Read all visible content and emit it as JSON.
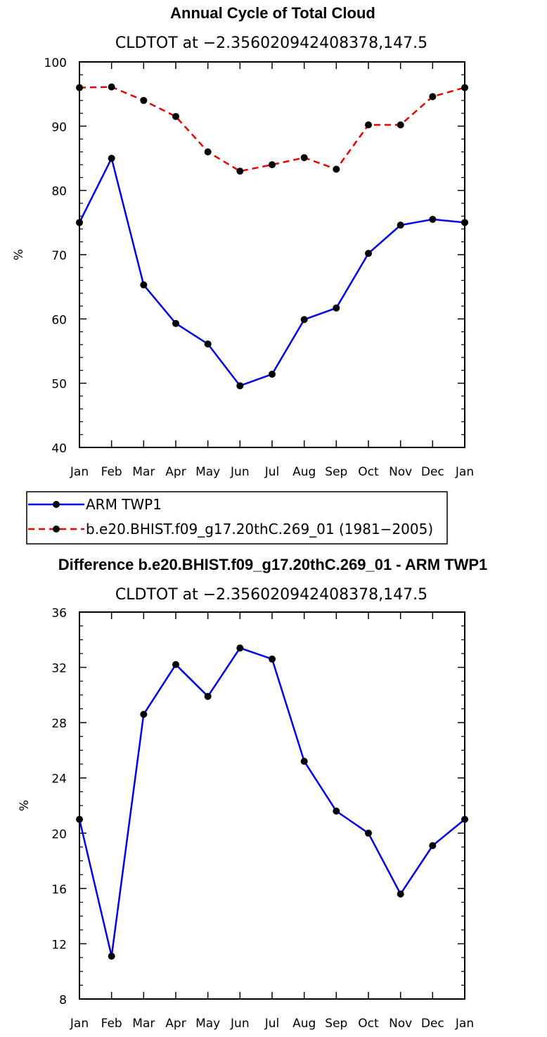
{
  "chart_data": [
    {
      "type": "line",
      "title": "Annual Cycle of Total Cloud",
      "subtitle": "CLDTOT at −2.356020942408378,147.5",
      "ylabel": "%",
      "ylim": [
        40,
        100
      ],
      "yticks": [
        "40",
        "50",
        "60",
        "70",
        "80",
        "90",
        "100"
      ],
      "categories": [
        "Jan",
        "Feb",
        "Mar",
        "Apr",
        "May",
        "Jun",
        "Jul",
        "Aug",
        "Sep",
        "Oct",
        "Nov",
        "Dec",
        "Jan"
      ],
      "series": [
        {
          "name": "ARM TWP1",
          "color": "#0000ee",
          "dash": "solid",
          "values": [
            75.0,
            85.0,
            65.3,
            59.3,
            56.1,
            49.6,
            51.4,
            59.9,
            61.7,
            70.2,
            74.6,
            75.5,
            75.0
          ]
        },
        {
          "name": "b.e20.BHIST.f09_g17.20thC.269_01 (1981−2005)",
          "color": "#ee0000",
          "dash": "dashed",
          "values": [
            96.0,
            96.1,
            94.0,
            91.5,
            86.0,
            83.0,
            84.0,
            85.1,
            83.3,
            90.2,
            90.2,
            94.6,
            96.0
          ]
        }
      ],
      "legend": {
        "placement": "below",
        "entries": [
          "ARM TWP1",
          "b.e20.BHIST.f09_g17.20thC.269_01 (1981−2005)"
        ]
      }
    },
    {
      "type": "line",
      "title": "Difference b.e20.BHIST.f09_g17.20thC.269_01 - ARM TWP1",
      "subtitle": "CLDTOT at −2.356020942408378,147.5",
      "ylabel": "%",
      "ylim": [
        8,
        36
      ],
      "yticks": [
        "8",
        "12",
        "16",
        "20",
        "24",
        "28",
        "32",
        "36"
      ],
      "categories": [
        "Jan",
        "Feb",
        "Mar",
        "Apr",
        "May",
        "Jun",
        "Jul",
        "Aug",
        "Sep",
        "Oct",
        "Nov",
        "Dec",
        "Jan"
      ],
      "series": [
        {
          "name": "Difference",
          "color": "#0000ee",
          "dash": "solid",
          "values": [
            21.0,
            11.1,
            28.6,
            32.2,
            29.9,
            33.4,
            32.6,
            25.2,
            21.6,
            20.0,
            15.6,
            19.1,
            21.0
          ]
        }
      ]
    }
  ]
}
